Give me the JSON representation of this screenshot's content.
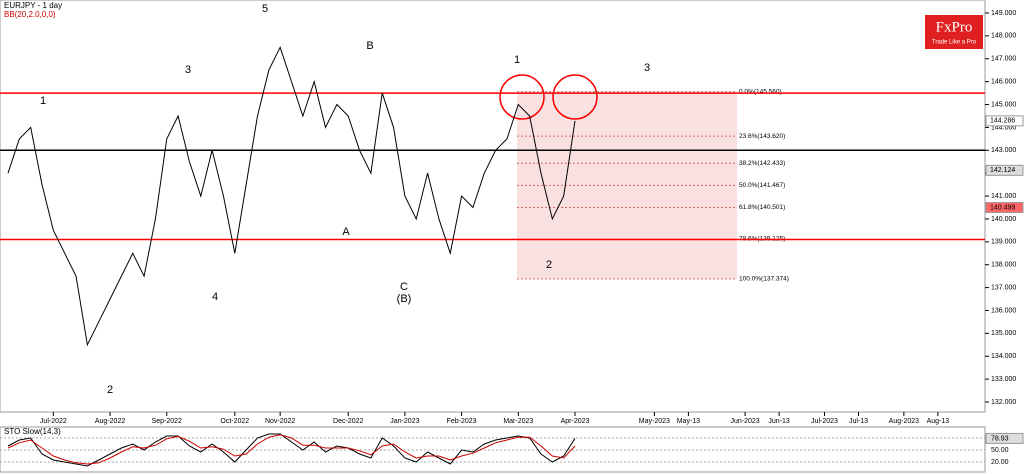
{
  "chart_data": {
    "type": "line",
    "title": "EURJPY - 1 day",
    "subtitle": "BB(20,2.0,0,0)",
    "brand": {
      "name": "FxPro",
      "tagline": "Trade Like a Pro"
    },
    "categories": [
      null,
      null,
      null,
      null,
      "Jul-2022",
      null,
      null,
      null,
      null,
      "Aug-2022",
      null,
      null,
      null,
      null,
      "Sep-2022",
      null,
      null,
      null,
      null,
      null,
      "Oct-2022",
      null,
      null,
      null,
      "Nov-2022",
      null,
      null,
      null,
      null,
      null,
      "Dec-2022",
      null,
      null,
      null,
      null,
      "Jan-2023",
      null,
      null,
      null,
      null,
      "Feb-2023",
      null,
      null,
      null,
      null,
      "Mar-2023",
      null,
      null,
      null,
      null,
      "Apr-2023",
      null,
      null,
      null,
      null,
      null,
      null,
      "May-2023",
      null,
      null,
      "May-13",
      null,
      null,
      null,
      null,
      "Jun-2023",
      null,
      null,
      "Jun-13",
      null,
      null,
      null,
      "Jul-2023",
      null,
      null,
      "Jul-13",
      null,
      null,
      null,
      "Aug-2023",
      null,
      null,
      "Aug-13",
      null,
      null,
      null,
      null
    ],
    "series": [
      {
        "name": "EURJPY",
        "color": "#000000",
        "values": [
          142,
          143.5,
          144,
          141.5,
          139.5,
          138.5,
          137.5,
          134.5,
          135.5,
          136.5,
          137.5,
          138.5,
          137.5,
          140,
          143.5,
          144.5,
          142.5,
          141,
          143,
          141,
          138.5,
          141.5,
          144.5,
          146.5,
          147.5,
          146,
          144.5,
          146,
          144,
          145,
          144.5,
          143,
          142,
          145.5,
          144,
          141,
          140,
          142,
          140,
          138.5,
          141,
          140.5,
          142,
          143,
          143.5,
          145,
          144.5,
          142,
          140,
          141,
          144.286,
          null,
          null,
          null,
          null,
          null,
          null,
          null,
          null,
          null,
          null,
          null,
          null,
          null,
          null,
          null,
          null,
          null,
          null,
          null,
          null,
          null,
          null,
          null,
          null,
          null,
          null,
          null,
          null,
          null,
          null,
          null,
          null,
          null,
          null,
          null,
          null
        ]
      }
    ],
    "ylim": [
      132,
      149
    ],
    "yticks": [
      {
        "value": 132,
        "label": "132.000"
      },
      {
        "value": 133,
        "label": "133.000"
      },
      {
        "value": 134,
        "label": "134.000"
      },
      {
        "value": 135,
        "label": "135.000"
      },
      {
        "value": 136,
        "label": "136.000"
      },
      {
        "value": 137,
        "label": "137.000"
      },
      {
        "value": 138,
        "label": "138.000"
      },
      {
        "value": 139,
        "label": "139.000"
      },
      {
        "value": 140,
        "label": "140.000"
      },
      {
        "value": 141,
        "label": "141.000"
      },
      {
        "value": 142,
        "label": "142.000"
      },
      {
        "value": 143,
        "label": "143.000"
      },
      {
        "value": 144,
        "label": "144.000"
      },
      {
        "value": 145,
        "label": "145.000"
      },
      {
        "value": 146,
        "label": "146.000"
      },
      {
        "value": 147,
        "label": "147.000"
      },
      {
        "value": 148,
        "label": "148.000"
      },
      {
        "value": 149,
        "label": "149.000"
      }
    ],
    "levels": [
      {
        "value": 145.5,
        "color": "#ff0000"
      },
      {
        "value": 143,
        "color": "#000000"
      },
      {
        "value": 139.1,
        "color": "#ff0000"
      }
    ],
    "fibonacci": [
      {
        "label": "0.0%(145.560)",
        "value": 145.56
      },
      {
        "label": "23.6%(143.620)",
        "value": 143.62
      },
      {
        "label": "38.2%(142.433)",
        "value": 142.433
      },
      {
        "label": "50.0%(141.467)",
        "value": 141.467
      },
      {
        "label": "61.8%(140.501)",
        "value": 140.501
      },
      {
        "label": "78.6%(139.125)",
        "value": 139.125
      },
      {
        "label": "100.0%(137.374)",
        "value": 137.374
      }
    ],
    "price_markers": [
      144.286,
      142.124,
      140.499
    ],
    "annotations": [
      "1",
      "2",
      "3",
      "4",
      "5",
      "A",
      "B",
      "C",
      "(B)",
      "1",
      "2",
      "3"
    ],
    "oscillator": {
      "title": "STO Slow(14,3)",
      "ylim": [
        0,
        100
      ],
      "yticks": [
        {
          "value": 80,
          "label": "80.00"
        },
        {
          "value": 50,
          "label": "50.00"
        },
        {
          "value": 20,
          "label": "20.00"
        }
      ],
      "current": {
        "value": 78.93,
        "label": "78.93"
      },
      "series": [
        {
          "name": "%K",
          "color": "#000000",
          "values": [
            60,
            75,
            80,
            40,
            25,
            20,
            15,
            10,
            25,
            40,
            55,
            65,
            50,
            70,
            85,
            85,
            60,
            45,
            65,
            45,
            20,
            50,
            80,
            90,
            90,
            70,
            50,
            70,
            45,
            60,
            55,
            40,
            30,
            80,
            60,
            30,
            20,
            45,
            30,
            15,
            50,
            45,
            65,
            75,
            80,
            85,
            80,
            40,
            20,
            35,
            79,
            null,
            null,
            null,
            null,
            null,
            null,
            null,
            null,
            null,
            null,
            null,
            null,
            null,
            null,
            null,
            null,
            null,
            null,
            null,
            null,
            null,
            null,
            null,
            null,
            null,
            null,
            null,
            null,
            null,
            null,
            null,
            null,
            null,
            null,
            null,
            null
          ]
        },
        {
          "name": "%D",
          "color": "#cc0000",
          "values": [
            55,
            68,
            75,
            55,
            35,
            25,
            18,
            15,
            18,
            30,
            45,
            58,
            55,
            62,
            78,
            84,
            72,
            55,
            58,
            52,
            35,
            40,
            65,
            82,
            88,
            80,
            62,
            62,
            55,
            55,
            55,
            48,
            38,
            60,
            65,
            45,
            30,
            35,
            35,
            25,
            35,
            42,
            55,
            68,
            75,
            82,
            82,
            60,
            35,
            30,
            60,
            null,
            null,
            null,
            null,
            null,
            null,
            null,
            null,
            null,
            null,
            null,
            null,
            null,
            null,
            null,
            null,
            null,
            null,
            null,
            null,
            null,
            null,
            null,
            null,
            null,
            null,
            null,
            null,
            null,
            null,
            null,
            null,
            null,
            null,
            null,
            null
          ]
        }
      ]
    }
  }
}
